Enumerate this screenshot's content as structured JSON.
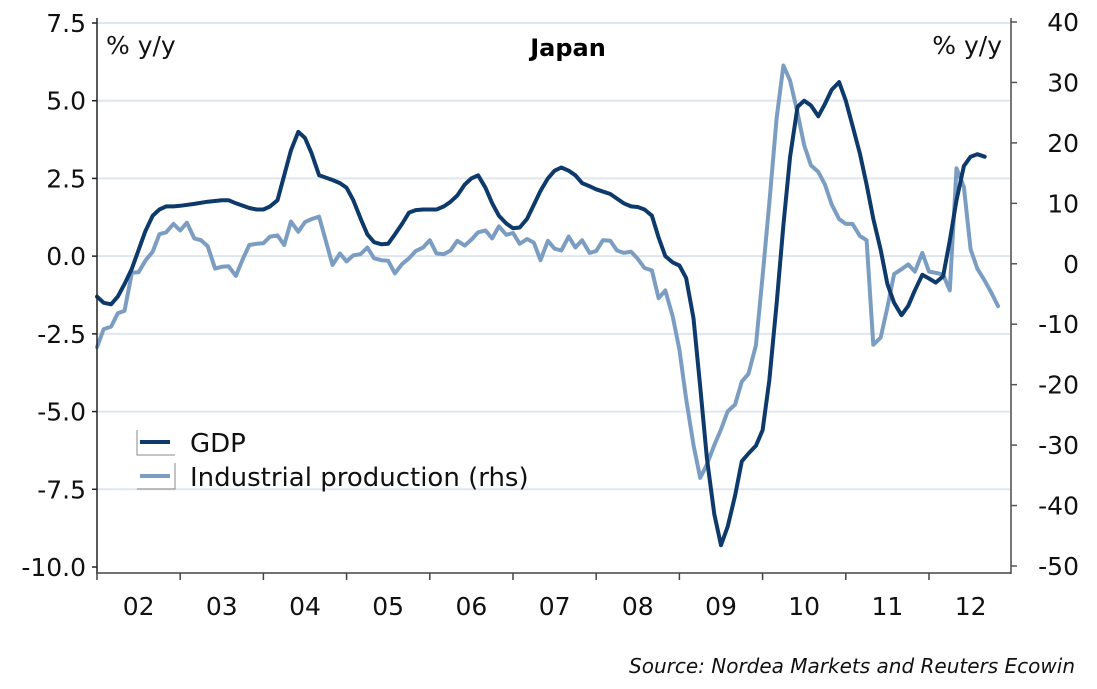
{
  "chart_data": {
    "type": "line",
    "title": "Japan",
    "left_unit_label": "% y/y",
    "right_unit_label": "% y/y",
    "source": "Source: Nordea Markets and Reuters Ecowin",
    "x_range": [
      2002.0,
      2012.98
    ],
    "x_ticks": [
      2002,
      2003,
      2004,
      2005,
      2006,
      2007,
      2008,
      2009,
      2010,
      2011,
      2012,
      2013
    ],
    "x_tick_labels": [
      "02",
      "03",
      "04",
      "05",
      "06",
      "07",
      "08",
      "09",
      "10",
      "11",
      "12"
    ],
    "y_left": {
      "range": [
        -10.0,
        7.5
      ],
      "ticks": [
        -10.0,
        -7.5,
        -5.0,
        -2.5,
        0.0,
        2.5,
        5.0,
        7.5
      ],
      "tick_labels": [
        "-10.0",
        "-7.5",
        "-5.0",
        "-2.5",
        "0.0",
        "2.5",
        "5.0",
        "7.5"
      ]
    },
    "y_right": {
      "range": [
        -50,
        40
      ],
      "ticks": [
        -50,
        -40,
        -30,
        -20,
        -10,
        0,
        10,
        20,
        30,
        40
      ],
      "tick_labels": [
        "-50",
        "-40",
        "-30",
        "-20",
        "-10",
        "0",
        "10",
        "20",
        "30",
        "40"
      ]
    },
    "grid": true,
    "legend": {
      "placement": "lower-left",
      "entries": [
        "GDP",
        "Industrial production (rhs)"
      ]
    },
    "series": [
      {
        "name": "GDP",
        "axis": "left",
        "color": "#0d3a6b",
        "points": [
          [
            2002.0,
            -1.3
          ],
          [
            2002.08,
            -1.5
          ],
          [
            2002.17,
            -1.55
          ],
          [
            2002.25,
            -1.3
          ],
          [
            2002.33,
            -0.9
          ],
          [
            2002.42,
            -0.4
          ],
          [
            2002.5,
            0.2
          ],
          [
            2002.58,
            0.8
          ],
          [
            2002.67,
            1.3
          ],
          [
            2002.75,
            1.5
          ],
          [
            2002.83,
            1.6
          ],
          [
            2002.92,
            1.6
          ],
          [
            2003.0,
            1.62
          ],
          [
            2003.17,
            1.68
          ],
          [
            2003.33,
            1.75
          ],
          [
            2003.5,
            1.8
          ],
          [
            2003.58,
            1.8
          ],
          [
            2003.67,
            1.7
          ],
          [
            2003.83,
            1.55
          ],
          [
            2003.92,
            1.5
          ],
          [
            2004.0,
            1.5
          ],
          [
            2004.08,
            1.6
          ],
          [
            2004.17,
            1.8
          ],
          [
            2004.25,
            2.6
          ],
          [
            2004.33,
            3.4
          ],
          [
            2004.42,
            4.0
          ],
          [
            2004.5,
            3.8
          ],
          [
            2004.58,
            3.3
          ],
          [
            2004.67,
            2.6
          ],
          [
            2004.83,
            2.45
          ],
          [
            2004.92,
            2.35
          ],
          [
            2005.0,
            2.2
          ],
          [
            2005.08,
            1.8
          ],
          [
            2005.17,
            1.2
          ],
          [
            2005.25,
            0.7
          ],
          [
            2005.33,
            0.45
          ],
          [
            2005.42,
            0.38
          ],
          [
            2005.5,
            0.4
          ],
          [
            2005.58,
            0.7
          ],
          [
            2005.67,
            1.05
          ],
          [
            2005.75,
            1.4
          ],
          [
            2005.83,
            1.48
          ],
          [
            2005.92,
            1.5
          ],
          [
            2006.08,
            1.5
          ],
          [
            2006.17,
            1.6
          ],
          [
            2006.25,
            1.75
          ],
          [
            2006.33,
            1.95
          ],
          [
            2006.42,
            2.3
          ],
          [
            2006.5,
            2.5
          ],
          [
            2006.58,
            2.6
          ],
          [
            2006.67,
            2.2
          ],
          [
            2006.75,
            1.7
          ],
          [
            2006.83,
            1.3
          ],
          [
            2006.92,
            1.05
          ],
          [
            2007.0,
            0.9
          ],
          [
            2007.08,
            0.92
          ],
          [
            2007.17,
            1.2
          ],
          [
            2007.25,
            1.65
          ],
          [
            2007.33,
            2.1
          ],
          [
            2007.42,
            2.5
          ],
          [
            2007.5,
            2.75
          ],
          [
            2007.58,
            2.85
          ],
          [
            2007.67,
            2.75
          ],
          [
            2007.75,
            2.6
          ],
          [
            2007.83,
            2.35
          ],
          [
            2007.92,
            2.25
          ],
          [
            2008.0,
            2.15
          ],
          [
            2008.17,
            2.0
          ],
          [
            2008.25,
            1.85
          ],
          [
            2008.33,
            1.7
          ],
          [
            2008.42,
            1.6
          ],
          [
            2008.5,
            1.58
          ],
          [
            2008.58,
            1.5
          ],
          [
            2008.67,
            1.3
          ],
          [
            2008.75,
            0.6
          ],
          [
            2008.83,
            0.0
          ],
          [
            2008.92,
            -0.2
          ],
          [
            2009.0,
            -0.3
          ],
          [
            2009.08,
            -0.7
          ],
          [
            2009.17,
            -2.0
          ],
          [
            2009.25,
            -4.2
          ],
          [
            2009.33,
            -6.5
          ],
          [
            2009.42,
            -8.3
          ],
          [
            2009.5,
            -9.3
          ],
          [
            2009.58,
            -8.7
          ],
          [
            2009.67,
            -7.7
          ],
          [
            2009.75,
            -6.6
          ],
          [
            2009.83,
            -6.35
          ],
          [
            2009.92,
            -6.1
          ],
          [
            2010.0,
            -5.6
          ],
          [
            2010.08,
            -4.0
          ],
          [
            2010.17,
            -1.5
          ],
          [
            2010.25,
            1.0
          ],
          [
            2010.33,
            3.2
          ],
          [
            2010.42,
            4.8
          ],
          [
            2010.5,
            5.0
          ],
          [
            2010.58,
            4.85
          ],
          [
            2010.67,
            4.5
          ],
          [
            2010.75,
            4.9
          ],
          [
            2010.83,
            5.35
          ],
          [
            2010.92,
            5.6
          ],
          [
            2011.0,
            5.0
          ],
          [
            2011.08,
            4.2
          ],
          [
            2011.17,
            3.3
          ],
          [
            2011.25,
            2.3
          ],
          [
            2011.33,
            1.2
          ],
          [
            2011.42,
            0.2
          ],
          [
            2011.5,
            -0.9
          ],
          [
            2011.58,
            -1.5
          ],
          [
            2011.67,
            -1.9
          ],
          [
            2011.75,
            -1.6
          ],
          [
            2011.83,
            -1.1
          ],
          [
            2011.92,
            -0.6
          ],
          [
            2012.0,
            -0.72
          ],
          [
            2012.08,
            -0.85
          ],
          [
            2012.17,
            -0.65
          ],
          [
            2012.25,
            0.5
          ],
          [
            2012.33,
            1.8
          ],
          [
            2012.42,
            2.9
          ],
          [
            2012.5,
            3.2
          ],
          [
            2012.58,
            3.28
          ],
          [
            2012.67,
            3.2
          ]
        ]
      },
      {
        "name": "Industrial production (rhs)",
        "axis": "right",
        "color": "#7c9dc2",
        "points": [
          [
            2002.0,
            -13.8
          ],
          [
            2002.08,
            -10.8
          ],
          [
            2002.17,
            -10.4
          ],
          [
            2002.25,
            -8.2
          ],
          [
            2002.33,
            -7.8
          ],
          [
            2002.42,
            -1.5
          ],
          [
            2002.5,
            -1.4
          ],
          [
            2002.58,
            0.5
          ],
          [
            2002.67,
            2.0
          ],
          [
            2002.75,
            4.9
          ],
          [
            2002.83,
            5.2
          ],
          [
            2002.92,
            6.6
          ],
          [
            2003.0,
            5.5
          ],
          [
            2003.08,
            6.8
          ],
          [
            2003.17,
            4.2
          ],
          [
            2003.25,
            3.9
          ],
          [
            2003.33,
            2.9
          ],
          [
            2003.42,
            -0.8
          ],
          [
            2003.5,
            -0.5
          ],
          [
            2003.58,
            -0.4
          ],
          [
            2003.67,
            -2.0
          ],
          [
            2003.75,
            0.7
          ],
          [
            2003.83,
            3.1
          ],
          [
            2003.92,
            3.3
          ],
          [
            2004.0,
            3.4
          ],
          [
            2004.08,
            4.5
          ],
          [
            2004.17,
            4.7
          ],
          [
            2004.25,
            3.1
          ],
          [
            2004.33,
            7.0
          ],
          [
            2004.42,
            5.3
          ],
          [
            2004.5,
            6.9
          ],
          [
            2004.58,
            7.4
          ],
          [
            2004.67,
            7.8
          ],
          [
            2004.75,
            3.8
          ],
          [
            2004.83,
            -0.2
          ],
          [
            2004.92,
            1.7
          ],
          [
            2005.0,
            0.4
          ],
          [
            2005.08,
            1.4
          ],
          [
            2005.17,
            1.6
          ],
          [
            2005.25,
            2.7
          ],
          [
            2005.33,
            0.9
          ],
          [
            2005.42,
            0.6
          ],
          [
            2005.5,
            0.5
          ],
          [
            2005.58,
            -1.6
          ],
          [
            2005.67,
            0.0
          ],
          [
            2005.75,
            0.9
          ],
          [
            2005.83,
            2.1
          ],
          [
            2005.92,
            2.7
          ],
          [
            2006.0,
            3.9
          ],
          [
            2006.08,
            1.7
          ],
          [
            2006.17,
            1.6
          ],
          [
            2006.25,
            2.2
          ],
          [
            2006.33,
            3.8
          ],
          [
            2006.42,
            3.0
          ],
          [
            2006.5,
            4.0
          ],
          [
            2006.58,
            5.2
          ],
          [
            2006.67,
            5.5
          ],
          [
            2006.75,
            4.2
          ],
          [
            2006.83,
            6.2
          ],
          [
            2006.92,
            4.8
          ],
          [
            2007.0,
            5.1
          ],
          [
            2007.08,
            3.3
          ],
          [
            2007.17,
            4.1
          ],
          [
            2007.25,
            3.5
          ],
          [
            2007.33,
            0.6
          ],
          [
            2007.42,
            3.8
          ],
          [
            2007.5,
            2.5
          ],
          [
            2007.58,
            2.2
          ],
          [
            2007.67,
            4.5
          ],
          [
            2007.75,
            2.7
          ],
          [
            2007.83,
            3.9
          ],
          [
            2007.92,
            1.8
          ],
          [
            2008.0,
            2.1
          ],
          [
            2008.08,
            3.9
          ],
          [
            2008.17,
            3.8
          ],
          [
            2008.25,
            2.2
          ],
          [
            2008.33,
            1.8
          ],
          [
            2008.42,
            2.0
          ],
          [
            2008.5,
            0.8
          ],
          [
            2008.58,
            -0.7
          ],
          [
            2008.67,
            -1.1
          ],
          [
            2008.75,
            -5.7
          ],
          [
            2008.83,
            -4.4
          ],
          [
            2008.92,
            -8.7
          ],
          [
            2009.0,
            -14.2
          ],
          [
            2009.08,
            -22.3
          ],
          [
            2009.17,
            -30.0
          ],
          [
            2009.25,
            -35.4
          ],
          [
            2009.33,
            -33.2
          ],
          [
            2009.42,
            -30.0
          ],
          [
            2009.5,
            -27.4
          ],
          [
            2009.58,
            -24.4
          ],
          [
            2009.67,
            -23.3
          ],
          [
            2009.75,
            -19.5
          ],
          [
            2009.83,
            -18.2
          ],
          [
            2009.92,
            -13.5
          ],
          [
            2010.0,
            -2.0
          ],
          [
            2010.08,
            10.0
          ],
          [
            2010.17,
            24.2
          ],
          [
            2010.25,
            32.8
          ],
          [
            2010.33,
            30.3
          ],
          [
            2010.42,
            25.0
          ],
          [
            2010.5,
            19.6
          ],
          [
            2010.58,
            16.3
          ],
          [
            2010.67,
            15.2
          ],
          [
            2010.75,
            13.1
          ],
          [
            2010.83,
            9.8
          ],
          [
            2010.92,
            7.4
          ],
          [
            2011.0,
            6.6
          ],
          [
            2011.08,
            6.6
          ],
          [
            2011.17,
            4.6
          ],
          [
            2011.25,
            3.9
          ],
          [
            2011.33,
            -13.4
          ],
          [
            2011.42,
            -12.2
          ],
          [
            2011.5,
            -7.2
          ],
          [
            2011.58,
            -1.7
          ],
          [
            2011.67,
            -0.9
          ],
          [
            2011.75,
            -0.1
          ],
          [
            2011.83,
            -1.3
          ],
          [
            2011.92,
            1.8
          ],
          [
            2012.0,
            -1.3
          ],
          [
            2012.08,
            -1.5
          ],
          [
            2012.17,
            -1.8
          ],
          [
            2012.25,
            -4.4
          ],
          [
            2012.33,
            15.8
          ],
          [
            2012.42,
            12.7
          ],
          [
            2012.5,
            2.4
          ],
          [
            2012.58,
            -0.8
          ],
          [
            2012.67,
            -2.8
          ],
          [
            2012.75,
            -4.8
          ],
          [
            2012.83,
            -7.0
          ]
        ]
      }
    ]
  }
}
